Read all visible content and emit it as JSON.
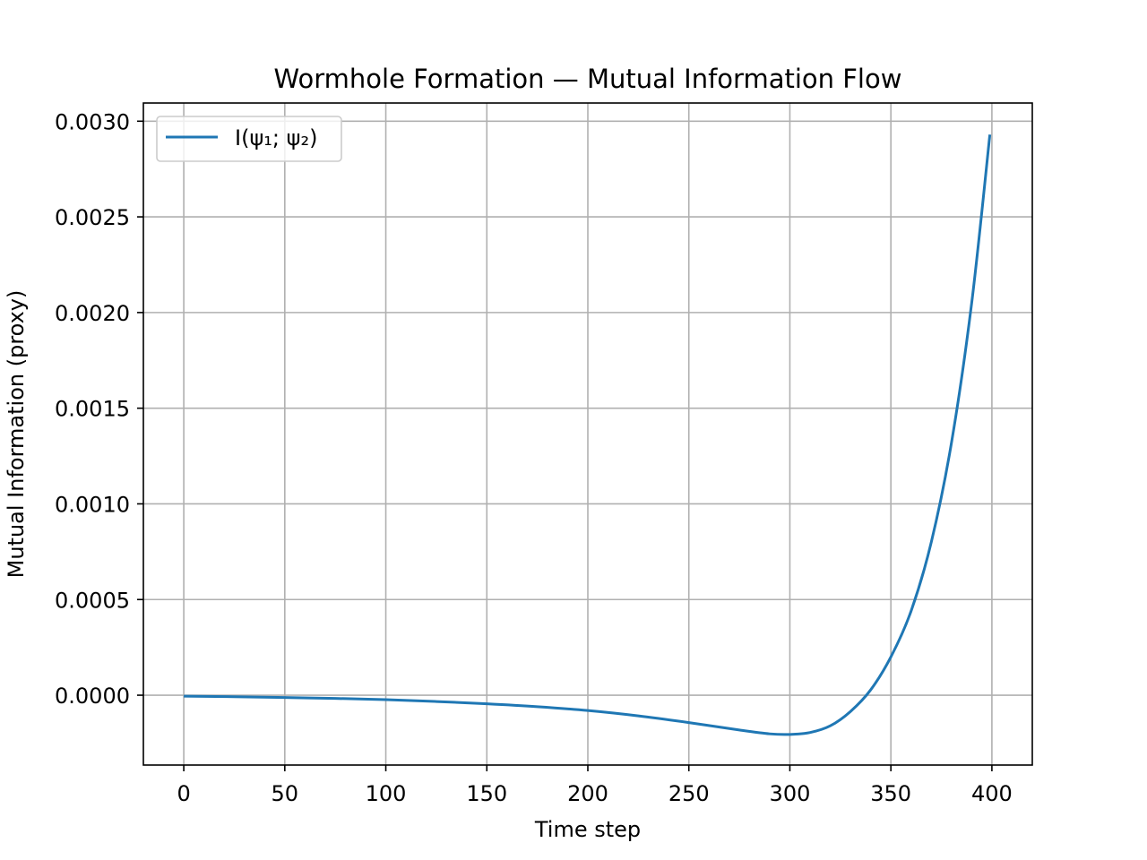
{
  "chart_data": {
    "type": "line",
    "title": "Wormhole Formation — Mutual Information Flow",
    "xlabel": "Time step",
    "ylabel": "Mutual Information (proxy)",
    "xlim": [
      -20,
      420
    ],
    "ylim": [
      -0.000365,
      0.003095
    ],
    "xticks": [
      0,
      50,
      100,
      150,
      200,
      250,
      300,
      350,
      400
    ],
    "xtick_labels": [
      "0",
      "50",
      "100",
      "150",
      "200",
      "250",
      "300",
      "350",
      "400"
    ],
    "yticks": [
      0.0,
      0.0005,
      0.001,
      0.0015,
      0.002,
      0.0025,
      0.003
    ],
    "ytick_labels": [
      "0.0000",
      "0.0005",
      "0.0010",
      "0.0015",
      "0.0020",
      "0.0025",
      "0.0030"
    ],
    "grid": true,
    "legend_position": "top-left",
    "series": [
      {
        "name": "I(ψ₁; ψ₂)",
        "color": "#1f77b4",
        "x": [
          0,
          25,
          50,
          75,
          100,
          125,
          150,
          175,
          200,
          225,
          250,
          275,
          290,
          300,
          310,
          320,
          330,
          340,
          350,
          360,
          370,
          380,
          390,
          399
        ],
        "y": [
          -5e-06,
          -8e-06,
          -1.2e-05,
          -1.7e-05,
          -2.3e-05,
          -3.3e-05,
          -4.5e-05,
          -6e-05,
          -8e-05,
          -0.000108,
          -0.000143,
          -0.000182,
          -0.000202,
          -0.000205,
          -0.000195,
          -0.00016,
          -8.5e-05,
          2.8e-05,
          0.0002,
          0.00044,
          0.0008,
          0.00132,
          0.00205,
          0.00293
        ]
      }
    ]
  }
}
